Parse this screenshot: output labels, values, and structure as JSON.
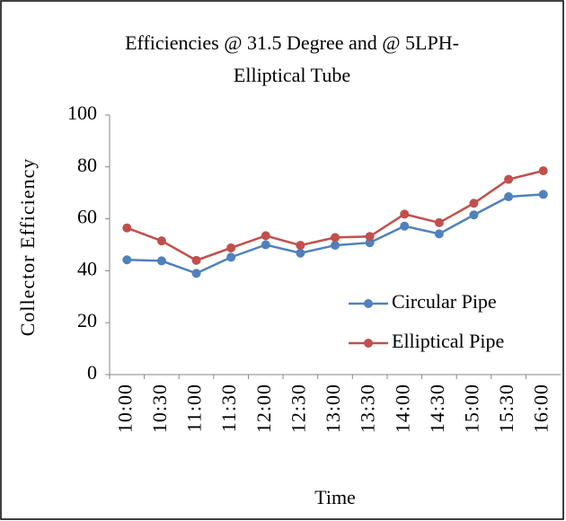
{
  "chart_data": {
    "type": "line",
    "title": [
      "Efficiencies @ 31.5 Degree and @ 5LPH-",
      "Elliptical Tube"
    ],
    "x_label": "Time",
    "y_label": "Collector Efficiency",
    "categories": [
      "10:00",
      "10:30",
      "11:00",
      "11:30",
      "12:00",
      "12:30",
      "13:00",
      "13:30",
      "14:00",
      "14:30",
      "15:00",
      "15:30",
      "16:00"
    ],
    "series": [
      {
        "name": "Circular Pipe",
        "color": "#4f81bd",
        "values": [
          44.2,
          43.8,
          39,
          45.2,
          50,
          46.8,
          49.8,
          50.8,
          57.2,
          54.2,
          61.5,
          68.5,
          69.4
        ]
      },
      {
        "name": "Elliptical Pipe",
        "color": "#c0504d",
        "values": [
          56.5,
          51.5,
          44,
          48.8,
          53.5,
          49.8,
          52.8,
          53.2,
          61.8,
          58.5,
          66,
          75.2,
          78.5
        ]
      }
    ],
    "ylim": [
      0,
      100
    ],
    "yticks": [
      0,
      20,
      40,
      60,
      80,
      100
    ],
    "grid": false,
    "legend": "right"
  }
}
